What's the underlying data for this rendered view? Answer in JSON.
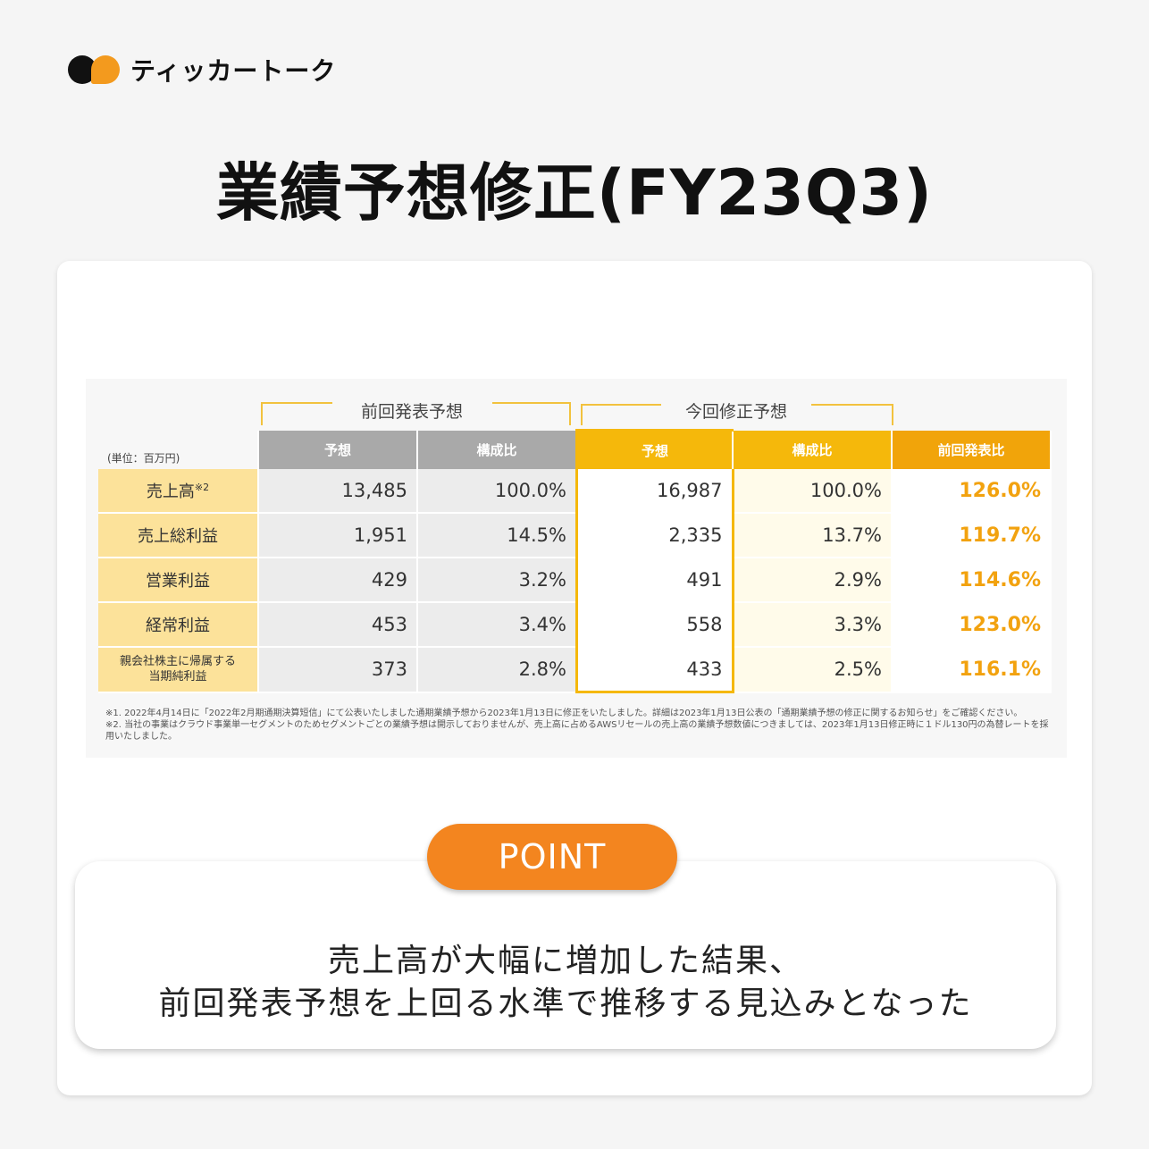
{
  "brand": {
    "name": "ティッカートーク",
    "colors": {
      "black": "#111111",
      "orange": "#f39a1e"
    }
  },
  "title": "業績予想修正(FY23Q3)",
  "slide": {
    "group_prev": "前回発表予想",
    "group_curr": "今回修正予想",
    "unit": "(単位：百万円)",
    "headers": {
      "forecast": "予想",
      "ratio": "構成比",
      "vs_prev": "前回発表比"
    },
    "rows": [
      {
        "label": "売上高",
        "sup": "※2",
        "prev_forecast": "13,485",
        "prev_ratio": "100.0%",
        "curr_forecast": "16,987",
        "curr_ratio": "100.0%",
        "vs_prev": "126.0%"
      },
      {
        "label": "売上総利益",
        "sup": "",
        "prev_forecast": "1,951",
        "prev_ratio": "14.5%",
        "curr_forecast": "2,335",
        "curr_ratio": "13.7%",
        "vs_prev": "119.7%"
      },
      {
        "label": "営業利益",
        "sup": "",
        "prev_forecast": "429",
        "prev_ratio": "3.2%",
        "curr_forecast": "491",
        "curr_ratio": "2.9%",
        "vs_prev": "114.6%"
      },
      {
        "label": "経常利益",
        "sup": "",
        "prev_forecast": "453",
        "prev_ratio": "3.4%",
        "curr_forecast": "558",
        "curr_ratio": "3.3%",
        "vs_prev": "123.0%"
      },
      {
        "label": "親会社株主に帰属する当期純利益",
        "sup": "",
        "prev_forecast": "373",
        "prev_ratio": "2.8%",
        "curr_forecast": "433",
        "curr_ratio": "2.5%",
        "vs_prev": "116.1%"
      }
    ],
    "label_last_line1": "親会社株主に帰属する",
    "label_last_line2": "当期純利益",
    "notes": [
      "※1. 2022年4月14日に「2022年2月期通期決算短信」にて公表いたしました通期業績予想から2023年1月13日に修正をいたしました。詳細は2023年1月13日公表の「通期業績予想の修正に関するお知らせ」をご確認ください。",
      "※2. 当社の事業はクラウド事業単一セグメントのためセグメントごとの業績予想は開示しておりませんが、売上高に占めるAWSリセールの売上高の業績予想数値につきましては、2023年1月13日修正時に１ドル130円の為替レートを採用いたしました。"
    ]
  },
  "point": {
    "label": "POINT",
    "line1": "売上高が大幅に増加した結果、",
    "line2": "前回発表予想を上回る水準で推移する見込みとなった"
  }
}
